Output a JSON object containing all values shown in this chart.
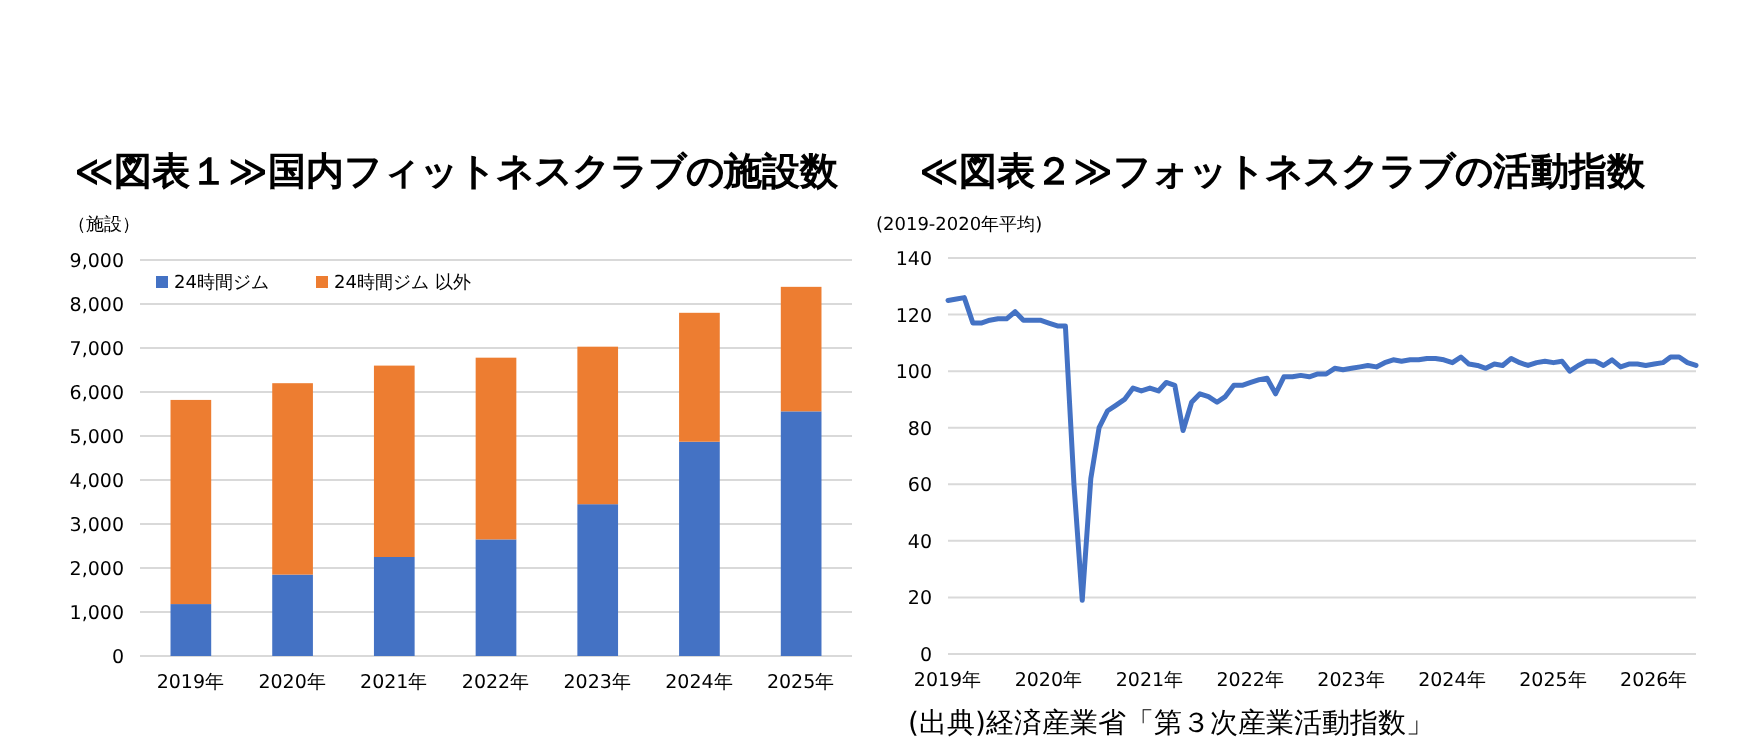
{
  "chart_data": [
    {
      "type": "bar",
      "title": "≪図表１≫国内フィットネスクラブの施設数",
      "ylabel": "（施設）",
      "stacked": true,
      "categories": [
        "2019年",
        "2020年",
        "2021年",
        "2022年",
        "2023年",
        "2024年",
        "2025年"
      ],
      "series": [
        {
          "name": "24時間ジム",
          "color": "#4472c4",
          "values": [
            1180,
            1850,
            2250,
            2650,
            3450,
            4870,
            5560
          ]
        },
        {
          "name": "24時間ジム 以外",
          "color": "#ed7d31",
          "values": [
            4640,
            4350,
            4350,
            4130,
            3580,
            2930,
            2830
          ]
        }
      ],
      "ylim": [
        0,
        9000
      ],
      "yticks": [
        0,
        {
          "value": 1000,
          "label": "1,000"
        },
        {
          "value": 2000,
          "label": "2,000"
        },
        {
          "value": 3000,
          "label": "3,000"
        },
        {
          "value": 4000,
          "label": "4,000"
        },
        {
          "value": 5000,
          "label": "5,000"
        },
        {
          "value": 6000,
          "label": "6,000"
        },
        {
          "value": 7000,
          "label": "7,000"
        },
        {
          "value": 8000,
          "label": "8,000"
        },
        {
          "value": 9000,
          "label": "9,000"
        }
      ],
      "grid": "y",
      "legend": "top left"
    },
    {
      "type": "line",
      "title": "≪図表２≫フォットネスクラブの活動指数",
      "ylabel": "(2019-2020年平均)",
      "annotations": [
        "(出典)経済産業省「第３次産業活動指数」"
      ],
      "x": [
        "2019-01",
        "2019-02",
        "2019-03",
        "2019-04",
        "2019-05",
        "2019-06",
        "2019-07",
        "2019-08",
        "2019-09",
        "2019-10",
        "2019-11",
        "2019-12",
        "2020-01",
        "2020-02",
        "2020-03",
        "2020-04",
        "2020-05",
        "2020-06",
        "2020-07",
        "2020-08",
        "2020-09",
        "2020-10",
        "2020-11",
        "2020-12",
        "2021-01",
        "2021-02",
        "2021-03",
        "2021-04",
        "2021-05",
        "2021-06",
        "2021-07",
        "2021-08",
        "2021-09",
        "2021-10",
        "2021-11",
        "2021-12",
        "2022-01",
        "2022-02",
        "2022-03",
        "2022-04",
        "2022-05",
        "2022-06",
        "2022-07",
        "2022-08",
        "2022-09",
        "2022-10",
        "2022-11",
        "2022-12",
        "2023-01",
        "2023-02",
        "2023-03",
        "2023-04",
        "2023-05",
        "2023-06",
        "2023-07",
        "2023-08",
        "2023-09",
        "2023-10",
        "2023-11",
        "2023-12",
        "2024-01",
        "2024-02",
        "2024-03",
        "2024-04",
        "2024-05",
        "2024-06",
        "2024-07",
        "2024-08",
        "2024-09",
        "2024-10",
        "2024-11",
        "2024-12",
        "2025-01",
        "2025-02",
        "2025-03",
        "2025-04",
        "2025-05",
        "2025-06",
        "2025-07",
        "2025-08",
        "2025-09",
        "2025-10",
        "2025-11",
        "2025-12",
        "2026-01",
        "2026-02",
        "2026-03",
        "2026-04",
        "2026-05",
        "2026-06"
      ],
      "series": [
        {
          "color": "#4472c4",
          "values": [
            125,
            125.5,
            126,
            117,
            117,
            118,
            118.5,
            118.5,
            121,
            118,
            118,
            118,
            117,
            116,
            116,
            60,
            19,
            62,
            80,
            86,
            88,
            90,
            94,
            93,
            94,
            93,
            96,
            95,
            79,
            89,
            92,
            91,
            89,
            91,
            95,
            95,
            96,
            97,
            97.5,
            92,
            98,
            98,
            98.5,
            98,
            99,
            99,
            101,
            100.5,
            101,
            101.5,
            102,
            101.5,
            103,
            104,
            103.5,
            104,
            104,
            104.5,
            104.5,
            104,
            103,
            105,
            102.5,
            102,
            101,
            102.5,
            102,
            104.5,
            103,
            102,
            103,
            103.5,
            103,
            103.5,
            100,
            102,
            103.5,
            103.5,
            102,
            104,
            101.5,
            102.5,
            102.5,
            102,
            102.5,
            103,
            105,
            105,
            103,
            102
          ]
        }
      ],
      "xlim": [
        "2019-01",
        "2026-06"
      ],
      "xticks": [
        {
          "value": "2019-01",
          "label": "2019年"
        },
        {
          "value": "2020-01",
          "label": "2020年"
        },
        {
          "value": "2021-01",
          "label": "2021年"
        },
        {
          "value": "2022-01",
          "label": "2022年"
        },
        {
          "value": "2023-01",
          "label": "2023年"
        },
        {
          "value": "2024-01",
          "label": "2024年"
        },
        {
          "value": "2025-01",
          "label": "2025年"
        },
        {
          "value": "2026-01",
          "label": "2026年"
        }
      ],
      "ylim": [
        0,
        140
      ],
      "yticks": [
        0,
        20,
        40,
        60,
        80,
        100,
        120,
        140
      ],
      "grid": "y",
      "marker": "none",
      "line_style": "solid"
    }
  ]
}
